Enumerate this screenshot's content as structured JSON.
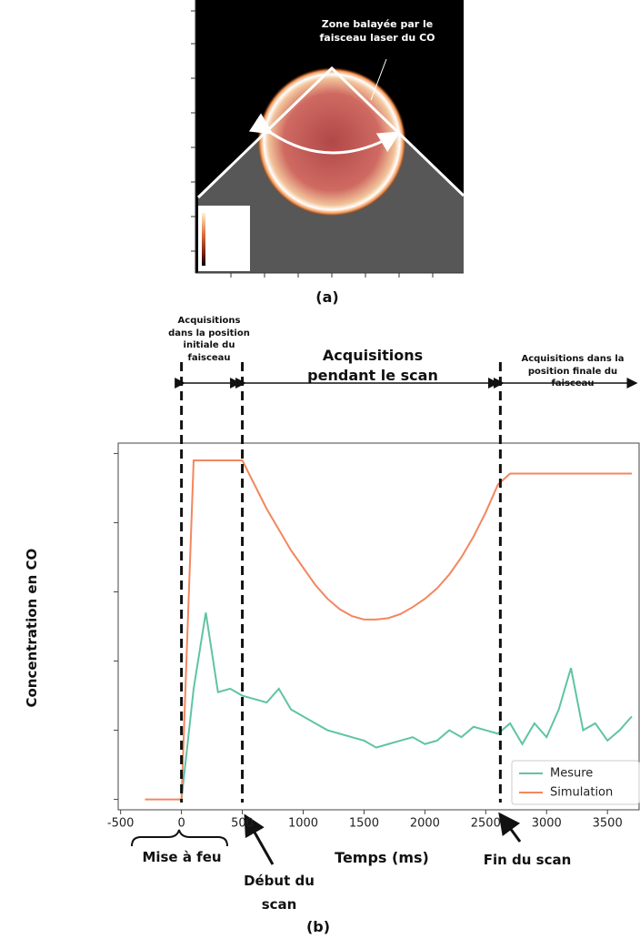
{
  "panel_a": {
    "annotation": "Zone balayée par le faisceau laser du CO",
    "caption": "(a)"
  },
  "chart_data": {
    "type": "line",
    "caption": "(b)",
    "x_label": "Temps (ms)",
    "y_label": "Concentration en CO",
    "x": [
      -300,
      -200,
      -100,
      0,
      100,
      200,
      300,
      400,
      500,
      600,
      700,
      800,
      900,
      1000,
      1100,
      1200,
      1300,
      1400,
      1500,
      1600,
      1700,
      1800,
      1900,
      2000,
      2100,
      2200,
      2300,
      2400,
      2500,
      2600,
      2700,
      2800,
      2900,
      3000,
      3100,
      3200,
      3300,
      3400,
      3500,
      3600,
      3700
    ],
    "series": [
      {
        "name": "Mesure",
        "color": "#5fc4a2",
        "values": [
          null,
          null,
          null,
          0,
          1.6,
          2.7,
          1.55,
          1.6,
          1.5,
          1.45,
          1.4,
          1.6,
          1.3,
          1.2,
          1.1,
          1.0,
          0.95,
          0.9,
          0.85,
          0.75,
          0.8,
          0.85,
          0.9,
          0.8,
          0.85,
          1.0,
          0.9,
          1.05,
          1.0,
          0.95,
          1.1,
          0.8,
          1.1,
          0.9,
          1.3,
          1.9,
          1.0,
          1.1,
          0.85,
          1.0,
          1.2
        ]
      },
      {
        "name": "Simulation",
        "color": "#f4865e",
        "values": [
          0,
          0,
          0,
          0,
          4.9,
          4.9,
          4.9,
          4.9,
          4.9,
          4.55,
          4.2,
          3.9,
          3.6,
          3.35,
          3.1,
          2.9,
          2.75,
          2.65,
          2.6,
          2.6,
          2.62,
          2.68,
          2.78,
          2.9,
          3.05,
          3.25,
          3.5,
          3.8,
          4.15,
          4.55,
          4.71,
          4.71,
          4.71,
          4.71,
          4.71,
          4.71,
          4.71,
          4.71,
          4.71,
          4.71,
          4.71
        ]
      }
    ],
    "xlim": [
      -520,
      3760
    ],
    "xticks": [
      -500,
      0,
      500,
      1000,
      1500,
      2000,
      2500,
      3000,
      3500
    ],
    "ylim": [
      -0.15,
      5.15
    ],
    "yticks": [
      0,
      1,
      2,
      3,
      4,
      5
    ],
    "legend": "lower right",
    "markers": [
      0,
      500,
      2620
    ],
    "phases": [
      "Acquisitions dans la position initiale du faisceau",
      "Acquisitions pendant le scan",
      "Acquisitions dans la position finale du faisceau"
    ],
    "events": [
      "Mise à feu",
      "Début du scan",
      "Fin du scan"
    ]
  }
}
